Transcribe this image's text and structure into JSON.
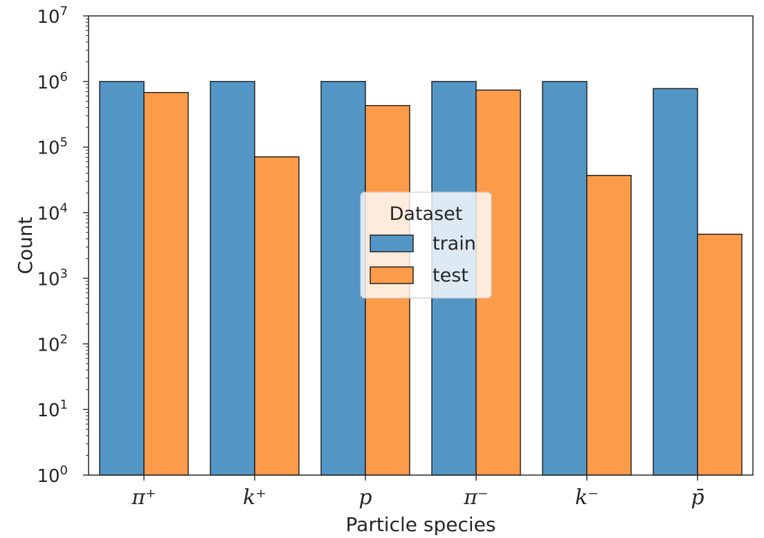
{
  "chart_data": {
    "type": "bar",
    "categories": [
      "π⁺",
      "k⁺",
      "p",
      "π⁻",
      "k⁻",
      "p̄"
    ],
    "series": [
      {
        "name": "train",
        "color": "#5497c6",
        "values": [
          1000000,
          1000000,
          1000000,
          1000000,
          1000000,
          780000
        ]
      },
      {
        "name": "test",
        "color": "#fc9b4a",
        "values": [
          680000,
          71000,
          430000,
          740000,
          37000,
          4700
        ]
      }
    ],
    "xlabel": "Particle species",
    "ylabel": "Count",
    "yscale": "log",
    "ylim": [
      1,
      10000000
    ],
    "yticks": [
      {
        "base": "10",
        "exp": "0"
      },
      {
        "base": "10",
        "exp": "1"
      },
      {
        "base": "10",
        "exp": "2"
      },
      {
        "base": "10",
        "exp": "3"
      },
      {
        "base": "10",
        "exp": "4"
      },
      {
        "base": "10",
        "exp": "5"
      },
      {
        "base": "10",
        "exp": "6"
      },
      {
        "base": "10",
        "exp": "7"
      }
    ],
    "legend": {
      "title": "Dataset",
      "placement": "center"
    },
    "grid": false
  }
}
